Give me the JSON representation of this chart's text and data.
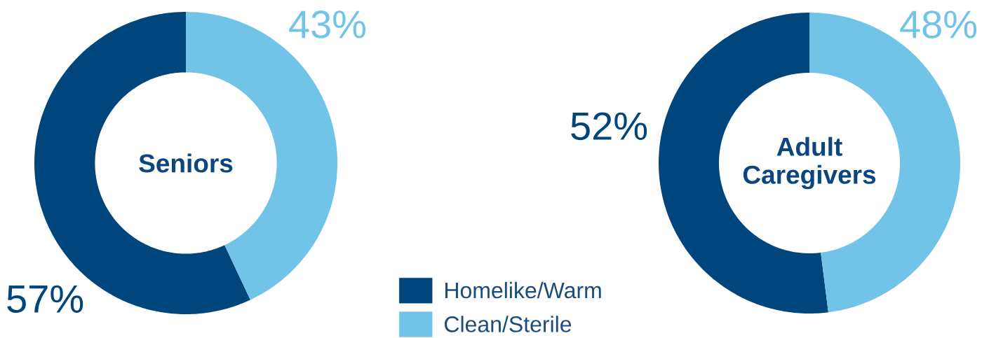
{
  "chart_data": [
    {
      "type": "donut",
      "title": "Seniors",
      "categories": [
        "Homelike/Warm",
        "Clean/Sterile"
      ],
      "values": [
        57,
        43
      ],
      "colors": [
        "#00457c",
        "#71c4e8"
      ],
      "value_labels": [
        "57%",
        "43%"
      ],
      "legend": "bottom right"
    },
    {
      "type": "donut",
      "title": "Adult Caregivers",
      "categories": [
        null,
        null
      ],
      "values": [
        52,
        48
      ],
      "colors": [
        "#00457c",
        "#71c4e8"
      ],
      "value_labels": [
        "52%",
        "48%"
      ]
    }
  ]
}
